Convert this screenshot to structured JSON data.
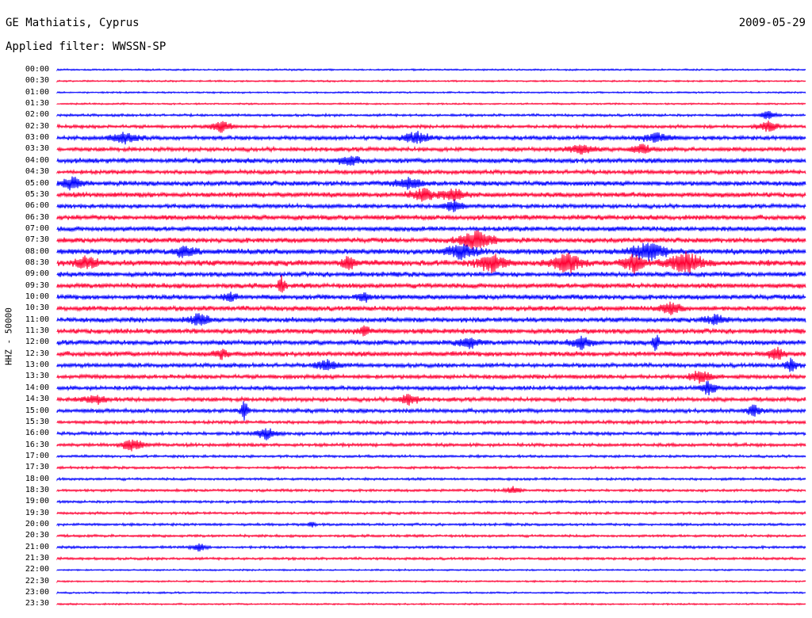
{
  "header": {
    "station": "GE Mathiatis, Cyprus",
    "date": "2009-05-29",
    "filter": "Applied filter: WWSSN-SP"
  },
  "chart_data": {
    "type": "line",
    "ylabel": "HHZ - 50000",
    "colors": {
      "even": "#0000ff",
      "odd": "#ff0033"
    },
    "rows": [
      "00:00",
      "00:30",
      "01:00",
      "01:30",
      "02:00",
      "02:30",
      "03:00",
      "03:30",
      "04:00",
      "04:30",
      "05:00",
      "05:30",
      "06:00",
      "06:30",
      "07:00",
      "07:30",
      "08:00",
      "08:30",
      "09:00",
      "09:30",
      "10:00",
      "10:30",
      "11:00",
      "11:30",
      "12:00",
      "12:30",
      "13:00",
      "13:30",
      "14:00",
      "14:30",
      "15:00",
      "15:30",
      "16:00",
      "16:30",
      "17:00",
      "17:30",
      "18:00",
      "18:30",
      "19:00",
      "19:30",
      "20:00",
      "20:30",
      "21:00",
      "21:30",
      "22:00",
      "22:30",
      "23:00",
      "23:30"
    ],
    "noise_level": [
      1,
      1,
      1,
      1,
      1.5,
      2,
      2.5,
      2.5,
      3,
      2.5,
      3,
      3,
      2.5,
      3,
      3,
      3,
      3.5,
      3.5,
      3,
      3,
      3,
      3,
      3,
      3,
      3,
      3,
      2.5,
      2.5,
      2.5,
      2.5,
      2.5,
      2,
      2,
      2,
      1.5,
      1.5,
      1.5,
      1.5,
      1.5,
      1.5,
      1.5,
      1.5,
      1.5,
      1.5,
      1,
      1,
      1,
      1
    ],
    "events": [
      {
        "row": "02:00",
        "pos": 0.95,
        "amp": 6,
        "width": 0.02
      },
      {
        "row": "02:30",
        "pos": 0.22,
        "amp": 7,
        "width": 0.03
      },
      {
        "row": "02:30",
        "pos": 0.95,
        "amp": 6,
        "width": 0.03
      },
      {
        "row": "03:00",
        "pos": 0.09,
        "amp": 7,
        "width": 0.04
      },
      {
        "row": "03:00",
        "pos": 0.48,
        "amp": 7,
        "width": 0.04
      },
      {
        "row": "03:00",
        "pos": 0.8,
        "amp": 6,
        "width": 0.04
      },
      {
        "row": "03:30",
        "pos": 0.7,
        "amp": 6,
        "width": 0.04
      },
      {
        "row": "03:30",
        "pos": 0.78,
        "amp": 6,
        "width": 0.03
      },
      {
        "row": "04:00",
        "pos": 0.39,
        "amp": 6,
        "width": 0.03
      },
      {
        "row": "05:00",
        "pos": 0.02,
        "amp": 8,
        "width": 0.03
      },
      {
        "row": "05:00",
        "pos": 0.47,
        "amp": 6,
        "width": 0.04
      },
      {
        "row": "05:30",
        "pos": 0.49,
        "amp": 7,
        "width": 0.04
      },
      {
        "row": "05:30",
        "pos": 0.53,
        "amp": 8,
        "width": 0.03
      },
      {
        "row": "06:00",
        "pos": 0.53,
        "amp": 7,
        "width": 0.03
      },
      {
        "row": "07:30",
        "pos": 0.56,
        "amp": 12,
        "width": 0.05
      },
      {
        "row": "08:00",
        "pos": 0.17,
        "amp": 7,
        "width": 0.03
      },
      {
        "row": "08:00",
        "pos": 0.54,
        "amp": 9,
        "width": 0.04
      },
      {
        "row": "08:00",
        "pos": 0.79,
        "amp": 11,
        "width": 0.05
      },
      {
        "row": "08:30",
        "pos": 0.04,
        "amp": 8,
        "width": 0.03
      },
      {
        "row": "08:30",
        "pos": 0.39,
        "amp": 9,
        "width": 0.02
      },
      {
        "row": "08:30",
        "pos": 0.58,
        "amp": 11,
        "width": 0.04
      },
      {
        "row": "08:30",
        "pos": 0.68,
        "amp": 13,
        "width": 0.04
      },
      {
        "row": "08:30",
        "pos": 0.77,
        "amp": 12,
        "width": 0.03
      },
      {
        "row": "08:30",
        "pos": 0.84,
        "amp": 13,
        "width": 0.05
      },
      {
        "row": "09:30",
        "pos": 0.3,
        "amp": 12,
        "width": 0.01
      },
      {
        "row": "10:00",
        "pos": 0.23,
        "amp": 6,
        "width": 0.02
      },
      {
        "row": "10:00",
        "pos": 0.41,
        "amp": 6,
        "width": 0.02
      },
      {
        "row": "10:30",
        "pos": 0.82,
        "amp": 7,
        "width": 0.03
      },
      {
        "row": "11:00",
        "pos": 0.19,
        "amp": 7,
        "width": 0.03
      },
      {
        "row": "11:00",
        "pos": 0.88,
        "amp": 6,
        "width": 0.03
      },
      {
        "row": "11:30",
        "pos": 0.41,
        "amp": 6,
        "width": 0.02
      },
      {
        "row": "12:00",
        "pos": 0.55,
        "amp": 7,
        "width": 0.03
      },
      {
        "row": "12:00",
        "pos": 0.7,
        "amp": 7,
        "width": 0.03
      },
      {
        "row": "12:00",
        "pos": 0.8,
        "amp": 10,
        "width": 0.01
      },
      {
        "row": "12:30",
        "pos": 0.22,
        "amp": 6,
        "width": 0.02
      },
      {
        "row": "12:30",
        "pos": 0.96,
        "amp": 9,
        "width": 0.02
      },
      {
        "row": "13:00",
        "pos": 0.36,
        "amp": 7,
        "width": 0.03
      },
      {
        "row": "13:00",
        "pos": 0.98,
        "amp": 8,
        "width": 0.02
      },
      {
        "row": "13:30",
        "pos": 0.86,
        "amp": 8,
        "width": 0.03
      },
      {
        "row": "14:00",
        "pos": 0.87,
        "amp": 9,
        "width": 0.02
      },
      {
        "row": "14:30",
        "pos": 0.05,
        "amp": 6,
        "width": 0.03
      },
      {
        "row": "14:30",
        "pos": 0.47,
        "amp": 6,
        "width": 0.03
      },
      {
        "row": "15:00",
        "pos": 0.25,
        "amp": 14,
        "width": 0.01
      },
      {
        "row": "15:00",
        "pos": 0.93,
        "amp": 7,
        "width": 0.02
      },
      {
        "row": "16:00",
        "pos": 0.28,
        "amp": 7,
        "width": 0.03
      },
      {
        "row": "16:30",
        "pos": 0.1,
        "amp": 8,
        "width": 0.03
      },
      {
        "row": "18:30",
        "pos": 0.61,
        "amp": 5,
        "width": 0.02
      },
      {
        "row": "20:00",
        "pos": 0.34,
        "amp": 4,
        "width": 0.01
      },
      {
        "row": "21:00",
        "pos": 0.19,
        "amp": 5,
        "width": 0.02
      }
    ]
  }
}
